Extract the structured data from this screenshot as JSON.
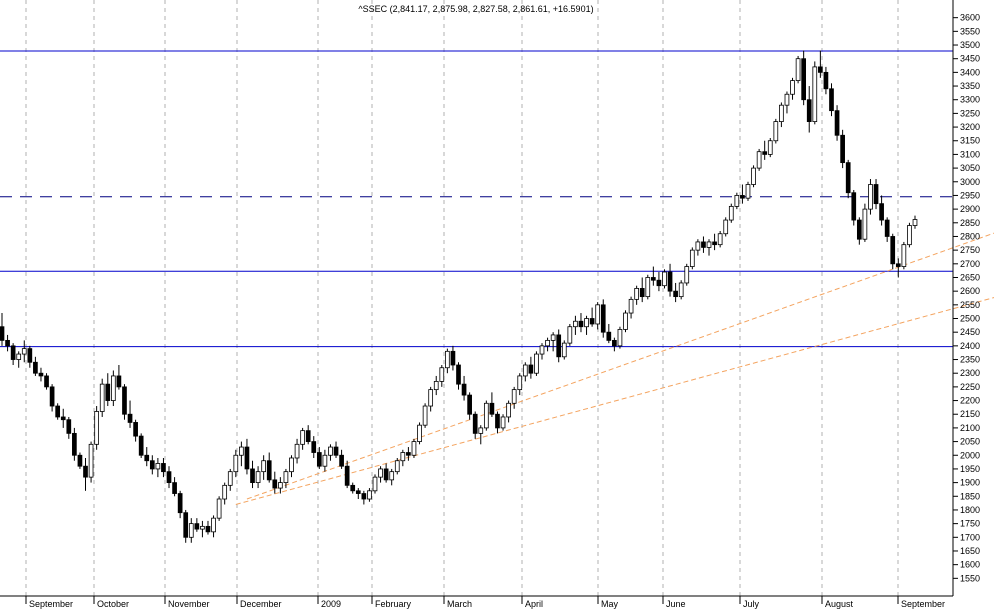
{
  "chart_data": {
    "type": "candlestick",
    "title": "^SSEC (2,841.17, 2,875.98, 2,827.58, 2,861.61, +16.5901)",
    "y_axis": {
      "side": "right",
      "range": [
        1500,
        3650
      ],
      "tick_labels": [
        "1550",
        "1600",
        "1650",
        "1700",
        "1750",
        "1800",
        "1850",
        "1900",
        "1950",
        "2000",
        "2050",
        "2100",
        "2150",
        "2200",
        "2250",
        "2300",
        "2350",
        "2400",
        "2450",
        "2500",
        "2550",
        "2600",
        "2650",
        "2700",
        "2750",
        "2800",
        "2850",
        "2900",
        "2950",
        "3000",
        "3050",
        "3100",
        "3150",
        "3200",
        "3250",
        "3300",
        "3350",
        "3400",
        "3450",
        "3500",
        "3550",
        "3600"
      ]
    },
    "x_axis": {
      "month_labels": [
        "September",
        "October",
        "November",
        "December",
        "2009",
        "February",
        "March",
        "April",
        "May",
        "June",
        "July",
        "August",
        "September"
      ]
    },
    "grid": "vertical dashed at month starts",
    "horizontal_lines": [
      {
        "value": 3478,
        "style": "solid",
        "color": "#0000cc"
      },
      {
        "value": 2945,
        "style": "dashed",
        "color": "#000080"
      },
      {
        "value": 2673,
        "style": "solid",
        "color": "#0000cc"
      },
      {
        "value": 2397,
        "style": "solid",
        "color": "#0000cc"
      }
    ],
    "trend_lines": [
      {
        "from": [
          44,
          1840
        ],
        "to": [
          240,
          3260
        ],
        "color": "#f4a460"
      },
      {
        "from": [
          42,
          1820
        ],
        "to": [
          240,
          2920
        ],
        "color": "#f4a460"
      }
    ],
    "candles": [
      [
        2470,
        2520,
        2400,
        2420
      ],
      [
        2420,
        2440,
        2380,
        2400
      ],
      [
        2400,
        2410,
        2330,
        2350
      ],
      [
        2350,
        2380,
        2320,
        2370
      ],
      [
        2370,
        2420,
        2340,
        2390
      ],
      [
        2390,
        2400,
        2320,
        2340
      ],
      [
        2340,
        2360,
        2290,
        2300
      ],
      [
        2300,
        2320,
        2270,
        2290
      ],
      [
        2290,
        2300,
        2240,
        2250
      ],
      [
        2250,
        2260,
        2160,
        2180
      ],
      [
        2180,
        2190,
        2130,
        2140
      ],
      [
        2140,
        2170,
        2100,
        2130
      ],
      [
        2130,
        2140,
        2060,
        2080
      ],
      [
        2080,
        2100,
        1980,
        2000
      ],
      [
        2000,
        2010,
        1950,
        1960
      ],
      [
        1960,
        1990,
        1870,
        1920
      ],
      [
        1920,
        2050,
        1900,
        2040
      ],
      [
        2040,
        2180,
        2020,
        2160
      ],
      [
        2160,
        2280,
        2140,
        2260
      ],
      [
        2260,
        2300,
        2180,
        2200
      ],
      [
        2200,
        2310,
        2180,
        2290
      ],
      [
        2290,
        2330,
        2240,
        2250
      ],
      [
        2250,
        2260,
        2130,
        2150
      ],
      [
        2150,
        2200,
        2100,
        2120
      ],
      [
        2120,
        2130,
        2050,
        2070
      ],
      [
        2070,
        2080,
        1990,
        2000
      ],
      [
        2000,
        2030,
        1960,
        1980
      ],
      [
        1980,
        2000,
        1930,
        1950
      ],
      [
        1950,
        1990,
        1920,
        1970
      ],
      [
        1970,
        1990,
        1920,
        1940
      ],
      [
        1940,
        1960,
        1880,
        1900
      ],
      [
        1900,
        1920,
        1850,
        1860
      ],
      [
        1860,
        1870,
        1770,
        1790
      ],
      [
        1790,
        1800,
        1680,
        1700
      ],
      [
        1700,
        1770,
        1680,
        1750
      ],
      [
        1750,
        1770,
        1720,
        1730
      ],
      [
        1730,
        1760,
        1700,
        1740
      ],
      [
        1740,
        1760,
        1710,
        1720
      ],
      [
        1720,
        1780,
        1700,
        1770
      ],
      [
        1770,
        1850,
        1760,
        1840
      ],
      [
        1840,
        1900,
        1820,
        1890
      ],
      [
        1890,
        1950,
        1870,
        1940
      ],
      [
        1940,
        2020,
        1920,
        2000
      ],
      [
        2000,
        2050,
        1960,
        2030
      ],
      [
        2030,
        2060,
        1930,
        1950
      ],
      [
        1950,
        1980,
        1880,
        1900
      ],
      [
        1900,
        1960,
        1880,
        1940
      ],
      [
        1940,
        2000,
        1910,
        1980
      ],
      [
        1980,
        2010,
        1900,
        1910
      ],
      [
        1910,
        1940,
        1860,
        1880
      ],
      [
        1880,
        1920,
        1860,
        1900
      ],
      [
        1900,
        1950,
        1880,
        1940
      ],
      [
        1940,
        2000,
        1920,
        1990
      ],
      [
        1990,
        2060,
        1970,
        2040
      ],
      [
        2040,
        2100,
        2020,
        2090
      ],
      [
        2090,
        2110,
        2040,
        2050
      ],
      [
        2050,
        2070,
        1990,
        2010
      ],
      [
        2010,
        2030,
        1950,
        1960
      ],
      [
        1960,
        2020,
        1940,
        2000
      ],
      [
        2000,
        2040,
        1980,
        2030
      ],
      [
        2030,
        2050,
        1990,
        2000
      ],
      [
        2000,
        2020,
        1950,
        1960
      ],
      [
        1960,
        1980,
        1880,
        1890
      ],
      [
        1890,
        1900,
        1860,
        1870
      ],
      [
        1870,
        1880,
        1840,
        1860
      ],
      [
        1860,
        1870,
        1820,
        1840
      ],
      [
        1840,
        1880,
        1830,
        1870
      ],
      [
        1870,
        1930,
        1860,
        1920
      ],
      [
        1920,
        1960,
        1900,
        1950
      ],
      [
        1950,
        1970,
        1900,
        1910
      ],
      [
        1910,
        1950,
        1890,
        1940
      ],
      [
        1940,
        1990,
        1930,
        1980
      ],
      [
        1980,
        2020,
        1960,
        2010
      ],
      [
        2010,
        2030,
        1980,
        2000
      ],
      [
        2000,
        2060,
        1990,
        2050
      ],
      [
        2050,
        2120,
        2040,
        2110
      ],
      [
        2110,
        2190,
        2100,
        2180
      ],
      [
        2180,
        2250,
        2160,
        2240
      ],
      [
        2240,
        2290,
        2220,
        2270
      ],
      [
        2270,
        2330,
        2250,
        2320
      ],
      [
        2320,
        2390,
        2300,
        2380
      ],
      [
        2380,
        2400,
        2310,
        2330
      ],
      [
        2330,
        2340,
        2240,
        2260
      ],
      [
        2260,
        2290,
        2200,
        2220
      ],
      [
        2220,
        2230,
        2130,
        2150
      ],
      [
        2150,
        2160,
        2060,
        2080
      ],
      [
        2080,
        2110,
        2040,
        2100
      ],
      [
        2100,
        2200,
        2090,
        2190
      ],
      [
        2190,
        2230,
        2140,
        2150
      ],
      [
        2150,
        2160,
        2080,
        2100
      ],
      [
        2100,
        2150,
        2090,
        2140
      ],
      [
        2140,
        2200,
        2120,
        2190
      ],
      [
        2190,
        2250,
        2170,
        2240
      ],
      [
        2240,
        2300,
        2220,
        2290
      ],
      [
        2290,
        2340,
        2270,
        2330
      ],
      [
        2330,
        2360,
        2280,
        2300
      ],
      [
        2300,
        2380,
        2290,
        2370
      ],
      [
        2370,
        2410,
        2350,
        2400
      ],
      [
        2400,
        2430,
        2380,
        2420
      ],
      [
        2420,
        2450,
        2380,
        2440
      ],
      [
        2440,
        2460,
        2340,
        2360
      ],
      [
        2360,
        2420,
        2350,
        2410
      ],
      [
        2410,
        2480,
        2400,
        2470
      ],
      [
        2470,
        2510,
        2440,
        2490
      ],
      [
        2490,
        2520,
        2450,
        2470
      ],
      [
        2470,
        2510,
        2440,
        2500
      ],
      [
        2500,
        2540,
        2470,
        2480
      ],
      [
        2480,
        2560,
        2460,
        2550
      ],
      [
        2550,
        2570,
        2430,
        2450
      ],
      [
        2450,
        2480,
        2410,
        2420
      ],
      [
        2420,
        2430,
        2380,
        2400
      ],
      [
        2400,
        2470,
        2390,
        2460
      ],
      [
        2460,
        2530,
        2450,
        2520
      ],
      [
        2520,
        2580,
        2500,
        2570
      ],
      [
        2570,
        2620,
        2550,
        2610
      ],
      [
        2610,
        2650,
        2560,
        2580
      ],
      [
        2580,
        2660,
        2570,
        2650
      ],
      [
        2650,
        2690,
        2620,
        2640
      ],
      [
        2640,
        2670,
        2600,
        2620
      ],
      [
        2620,
        2680,
        2610,
        2670
      ],
      [
        2670,
        2700,
        2580,
        2600
      ],
      [
        2600,
        2630,
        2560,
        2580
      ],
      [
        2580,
        2640,
        2570,
        2630
      ],
      [
        2630,
        2700,
        2620,
        2690
      ],
      [
        2690,
        2760,
        2680,
        2750
      ],
      [
        2750,
        2790,
        2730,
        2780
      ],
      [
        2780,
        2800,
        2740,
        2760
      ],
      [
        2760,
        2790,
        2730,
        2780
      ],
      [
        2780,
        2810,
        2750,
        2770
      ],
      [
        2770,
        2820,
        2760,
        2810
      ],
      [
        2810,
        2870,
        2800,
        2860
      ],
      [
        2860,
        2920,
        2850,
        2910
      ],
      [
        2910,
        2960,
        2900,
        2950
      ],
      [
        2950,
        2990,
        2920,
        2940
      ],
      [
        2940,
        3000,
        2930,
        2990
      ],
      [
        2990,
        3060,
        2980,
        3050
      ],
      [
        3050,
        3120,
        3040,
        3110
      ],
      [
        3110,
        3150,
        3080,
        3100
      ],
      [
        3100,
        3160,
        3090,
        3150
      ],
      [
        3150,
        3230,
        3140,
        3220
      ],
      [
        3220,
        3290,
        3200,
        3280
      ],
      [
        3280,
        3330,
        3250,
        3320
      ],
      [
        3320,
        3380,
        3300,
        3370
      ],
      [
        3370,
        3460,
        3360,
        3450
      ],
      [
        3450,
        3480,
        3280,
        3300
      ],
      [
        3300,
        3350,
        3180,
        3220
      ],
      [
        3220,
        3440,
        3210,
        3420
      ],
      [
        3420,
        3480,
        3380,
        3400
      ],
      [
        3400,
        3420,
        3320,
        3340
      ],
      [
        3340,
        3360,
        3240,
        3260
      ],
      [
        3260,
        3280,
        3150,
        3170
      ],
      [
        3170,
        3190,
        3050,
        3070
      ],
      [
        3070,
        3080,
        2940,
        2960
      ],
      [
        2960,
        2970,
        2840,
        2860
      ],
      [
        2860,
        2870,
        2770,
        2790
      ],
      [
        2790,
        2920,
        2780,
        2900
      ],
      [
        2900,
        3010,
        2880,
        2990
      ],
      [
        2990,
        3010,
        2900,
        2920
      ],
      [
        2920,
        2950,
        2840,
        2860
      ],
      [
        2860,
        2870,
        2780,
        2800
      ],
      [
        2800,
        2810,
        2680,
        2700
      ],
      [
        2700,
        2720,
        2650,
        2690
      ],
      [
        2690,
        2780,
        2680,
        2770
      ],
      [
        2770,
        2850,
        2760,
        2840
      ],
      [
        2840,
        2876,
        2828,
        2862
      ]
    ]
  }
}
